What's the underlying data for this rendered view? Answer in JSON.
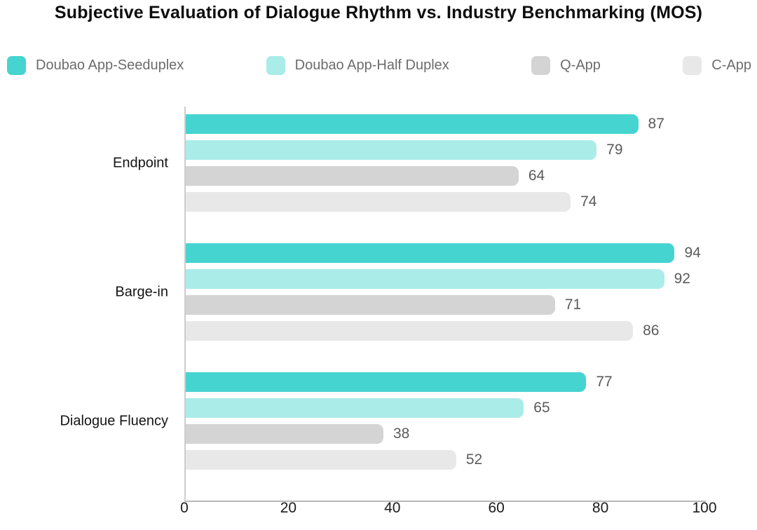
{
  "chart_data": {
    "type": "bar",
    "orientation": "horizontal",
    "title": "Subjective Evaluation of Dialogue Rhythm vs. Industry Benchmarking (MOS)",
    "categories": [
      "Endpoint",
      "Barge-in",
      "Dialogue Fluency"
    ],
    "series": [
      {
        "name": "Doubao App-Seeduplex",
        "color": "#46d4d0",
        "values": [
          87,
          94,
          77
        ]
      },
      {
        "name": "Doubao App-Half Duplex",
        "color": "#a9ece8",
        "values": [
          79,
          92,
          65
        ]
      },
      {
        "name": "Q-App",
        "color": "#d4d4d4",
        "values": [
          64,
          71,
          38
        ]
      },
      {
        "name": "C-App",
        "color": "#e8e8e8",
        "values": [
          74,
          86,
          52
        ]
      }
    ],
    "value_labels": {
      "Endpoint": [
        87,
        79,
        64,
        74
      ],
      "Barge-in": [
        94,
        92,
        71,
        86
      ],
      "Dialogue Fluency": [
        77,
        65,
        38,
        52
      ]
    },
    "xlim": [
      0,
      100
    ],
    "xticks": [
      "0",
      "20",
      "40",
      "60",
      "80",
      "100"
    ],
    "legend_position": "top",
    "grid": false
  },
  "colors": {
    "axis_line": "#cdcdcd",
    "value_label_text": "#5b5b5b",
    "legend_text": "#6c6c6c",
    "title_text": "#0d0d0d"
  }
}
